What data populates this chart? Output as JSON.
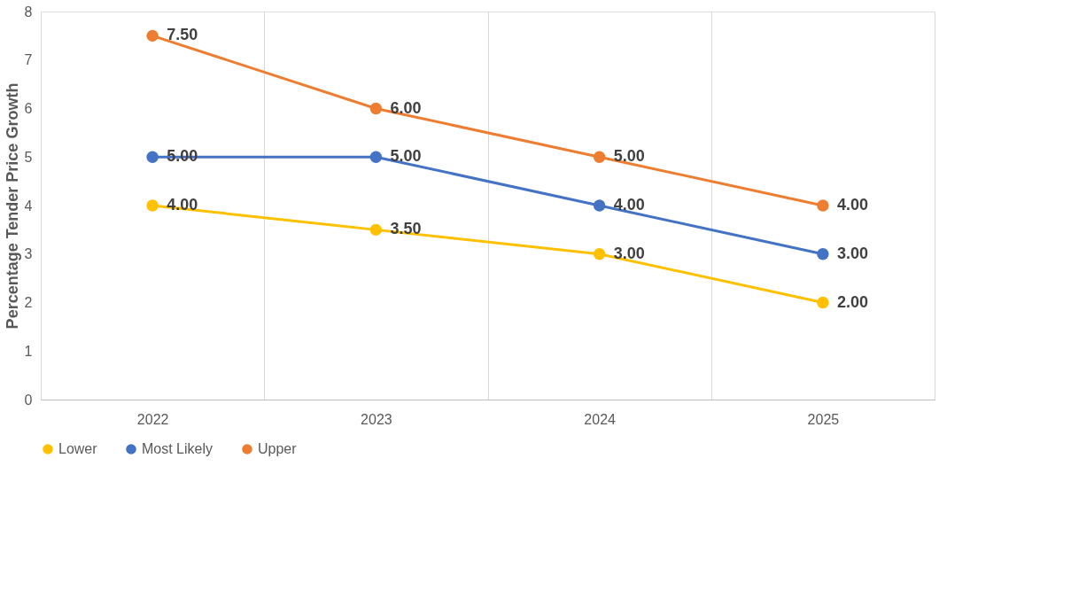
{
  "chart_data": {
    "type": "line",
    "ylabel": "Percentage Tender Price Growth",
    "categories": [
      "2022",
      "2023",
      "2024",
      "2025"
    ],
    "series": [
      {
        "name": "Lower",
        "color": "#ffc000",
        "values": [
          4.0,
          3.5,
          3.0,
          2.0
        ],
        "value_labels": [
          "4.00",
          "3.50",
          "3.00",
          "2.00"
        ]
      },
      {
        "name": "Most Likely",
        "color": "#4472c4",
        "values": [
          5.0,
          5.0,
          4.0,
          3.0
        ],
        "value_labels": [
          "5.00",
          "5.00",
          "4.00",
          "3.00"
        ]
      },
      {
        "name": "Upper",
        "color": "#ed7d31",
        "values": [
          7.5,
          6.0,
          5.0,
          4.0
        ],
        "value_labels": [
          "7.50",
          "6.00",
          "5.00",
          "4.00"
        ]
      }
    ],
    "ylim": [
      0,
      8
    ],
    "yticks": [
      0,
      1,
      2,
      3,
      4,
      5,
      6,
      7,
      8
    ],
    "grid": "x",
    "legend": "bottom",
    "marker": "circle",
    "line_style": "solid"
  }
}
